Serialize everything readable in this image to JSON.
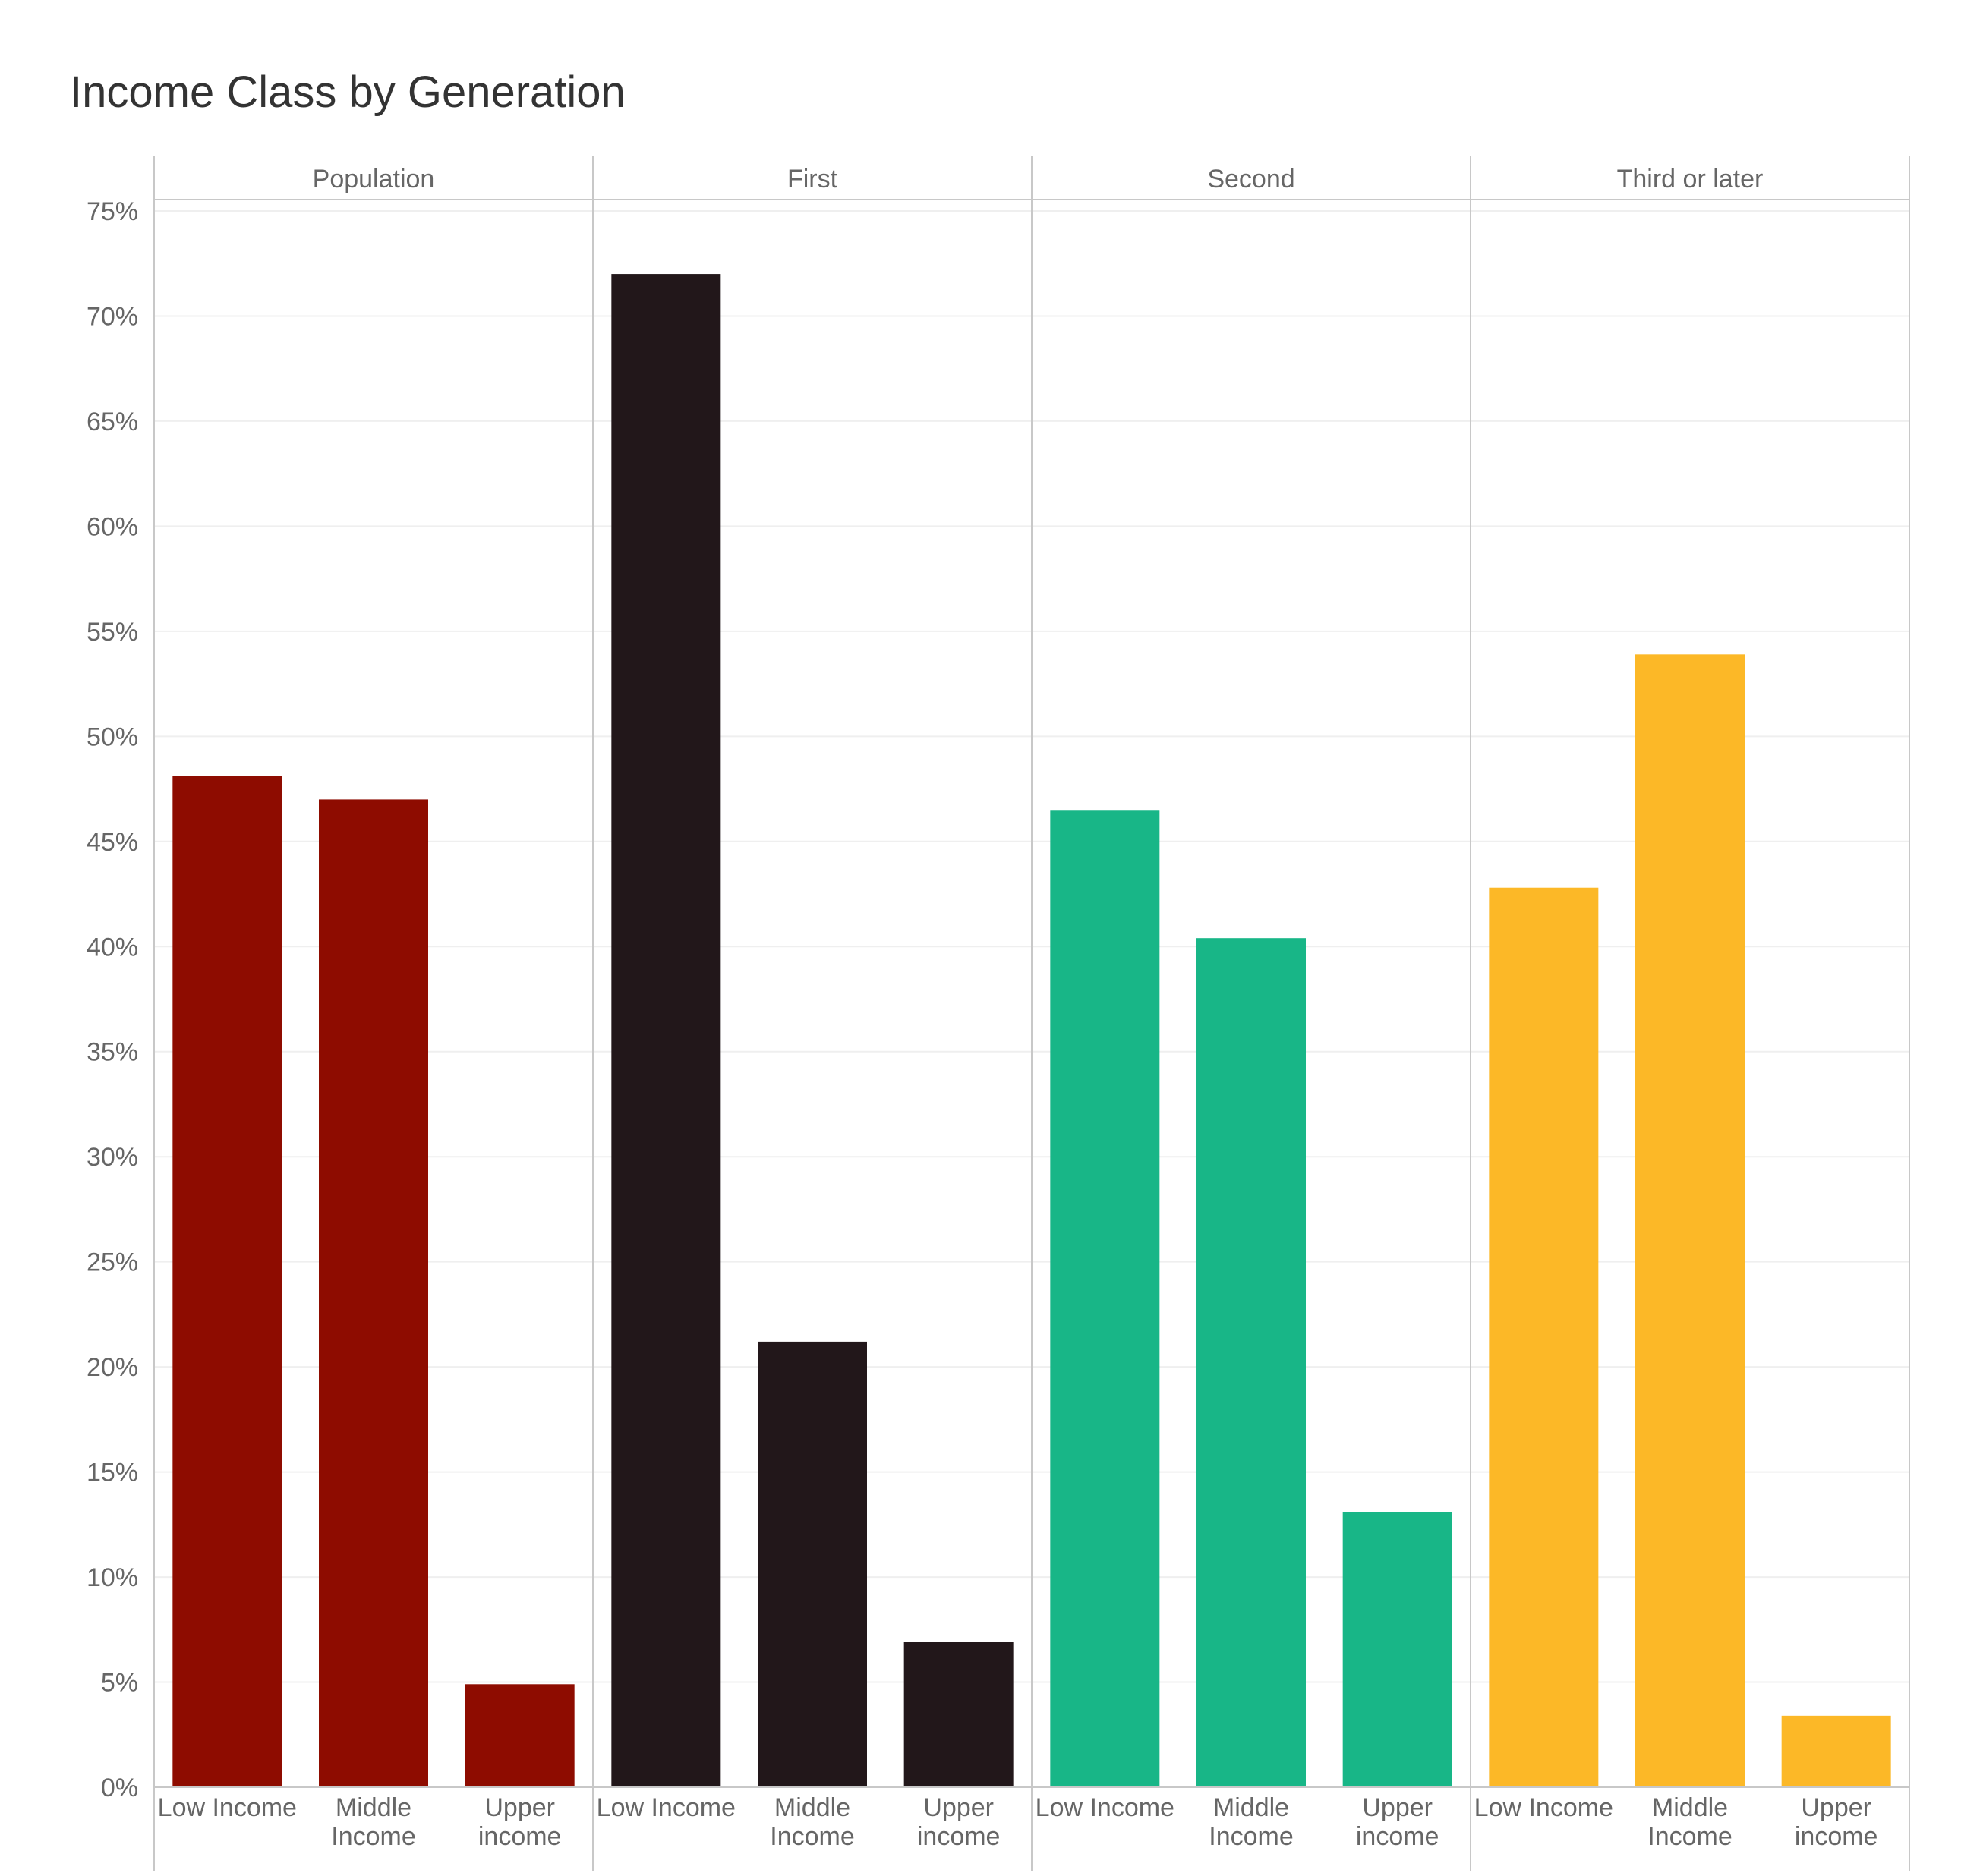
{
  "chart_data": {
    "type": "bar",
    "title": "Income Class by Generation",
    "xlabel": "",
    "ylabel": "",
    "ylim": [
      0,
      75
    ],
    "yticks": [
      "0%",
      "5%",
      "10%",
      "15%",
      "20%",
      "25%",
      "30%",
      "35%",
      "40%",
      "45%",
      "50%",
      "55%",
      "60%",
      "65%",
      "70%",
      "75%"
    ],
    "categories": [
      [
        "Low Income"
      ],
      [
        "Middle",
        "Income"
      ],
      [
        "Upper",
        "income"
      ]
    ],
    "grid": true,
    "panels": [
      {
        "name": "Population",
        "color": "#8E0C00",
        "values": [
          48.1,
          47.0,
          4.9
        ]
      },
      {
        "name": "First",
        "color": "#22171A",
        "values": [
          72.0,
          21.2,
          6.9
        ]
      },
      {
        "name": "Second",
        "color": "#18B687",
        "values": [
          46.5,
          40.4,
          13.1
        ]
      },
      {
        "name": "Third or later",
        "color": "#FCB827",
        "values": [
          42.8,
          53.9,
          3.4
        ]
      }
    ]
  }
}
